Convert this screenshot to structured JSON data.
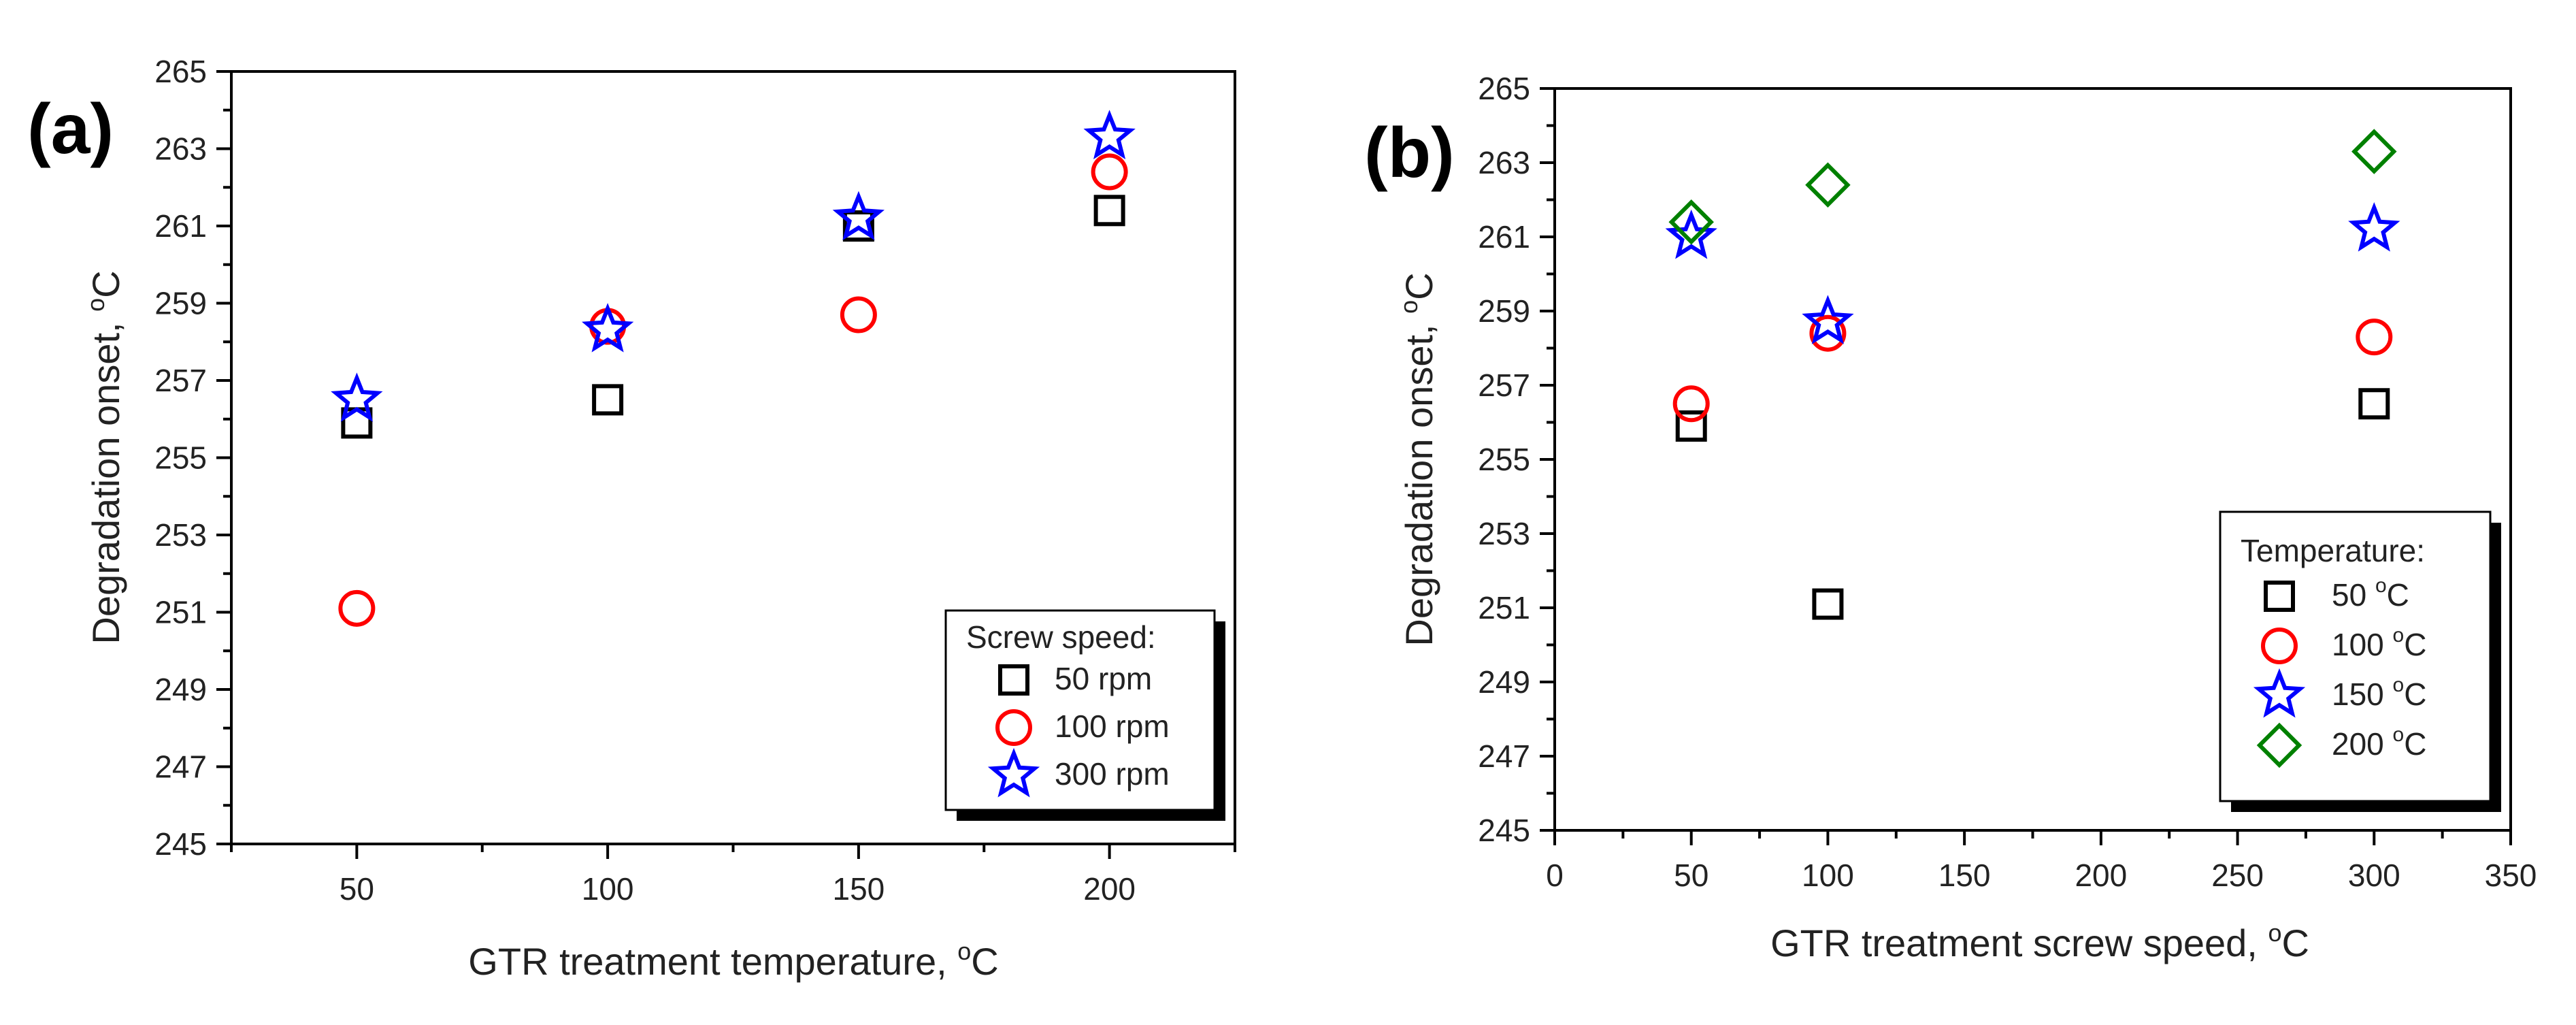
{
  "chart_data": [
    {
      "type": "scatter",
      "panel_label": "(a)",
      "xlabel": "GTR treatment temperature, ",
      "xlabel_unit": "C",
      "ylabel": "Degradation onset, ",
      "ylabel_unit": "C",
      "degree_mark": "o",
      "xlim": [
        25,
        225
      ],
      "ylim": [
        245,
        265
      ],
      "xticks": [
        50,
        100,
        150,
        200
      ],
      "yticks": [
        245,
        247,
        249,
        251,
        253,
        255,
        257,
        259,
        261,
        263,
        265
      ],
      "legend_title": "Screw speed:",
      "legend_position": "bottom-right",
      "series": [
        {
          "name": "50 rpm",
          "marker": "square",
          "color": "#000000",
          "x": [
            50,
            100,
            150,
            200
          ],
          "y": [
            255.9,
            256.5,
            261.0,
            261.4
          ]
        },
        {
          "name": "100 rpm",
          "marker": "circle",
          "color": "#ff0000",
          "x": [
            50,
            100,
            150,
            200
          ],
          "y": [
            251.1,
            258.4,
            258.7,
            262.4
          ]
        },
        {
          "name": "300 rpm",
          "marker": "star",
          "color": "#0000ff",
          "x": [
            50,
            100,
            150,
            200
          ],
          "y": [
            256.5,
            258.3,
            261.2,
            263.3
          ]
        }
      ]
    },
    {
      "type": "scatter",
      "panel_label": "(b)",
      "xlabel": "GTR treatment screw speed, ",
      "xlabel_unit": "C",
      "ylabel": "Degradation onset, ",
      "ylabel_unit": "C",
      "degree_mark": "o",
      "xlim": [
        0,
        350
      ],
      "ylim": [
        245,
        265
      ],
      "xticks": [
        0,
        50,
        100,
        150,
        200,
        250,
        300,
        350
      ],
      "yticks": [
        245,
        247,
        249,
        251,
        253,
        255,
        257,
        259,
        261,
        263,
        265
      ],
      "legend_title": "Temperature:",
      "legend_position": "bottom-right",
      "series": [
        {
          "name": "50 ",
          "unit": "C",
          "marker": "square",
          "color": "#000000",
          "x": [
            50,
            100,
            300
          ],
          "y": [
            255.9,
            251.1,
            256.5
          ]
        },
        {
          "name": "100 ",
          "unit": "C",
          "marker": "circle",
          "color": "#ff0000",
          "x": [
            50,
            100,
            300
          ],
          "y": [
            256.5,
            258.4,
            258.3
          ]
        },
        {
          "name": "150 ",
          "unit": "C",
          "marker": "star",
          "color": "#0000ff",
          "x": [
            50,
            100,
            300
          ],
          "y": [
            261.0,
            258.7,
            261.2
          ]
        },
        {
          "name": "200 ",
          "unit": "C",
          "marker": "diamond",
          "color": "#008000",
          "x": [
            50,
            100,
            300
          ],
          "y": [
            261.4,
            262.4,
            263.3
          ]
        }
      ]
    }
  ]
}
